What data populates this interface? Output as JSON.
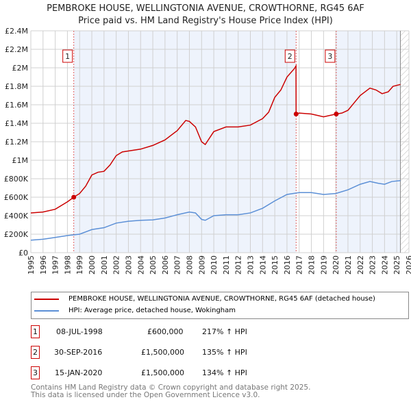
{
  "chart_data": {
    "type": "line",
    "title": "PEMBROKE HOUSE, WELLINGTONIA AVENUE, CROWTHORNE, RG45 6AF",
    "subtitle": "Price paid vs. HM Land Registry's House Price Index (HPI)",
    "xlim": [
      1995,
      2026
    ],
    "ylim": [
      0,
      2400000
    ],
    "yticks": [
      {
        "v": 0,
        "l": "£0"
      },
      {
        "v": 200000,
        "l": "£200K"
      },
      {
        "v": 400000,
        "l": "£400K"
      },
      {
        "v": 600000,
        "l": "£600K"
      },
      {
        "v": 800000,
        "l": "£800K"
      },
      {
        "v": 1000000,
        "l": "£1M"
      },
      {
        "v": 1200000,
        "l": "£1.2M"
      },
      {
        "v": 1400000,
        "l": "£1.4M"
      },
      {
        "v": 1600000,
        "l": "£1.6M"
      },
      {
        "v": 1800000,
        "l": "£1.8M"
      },
      {
        "v": 2000000,
        "l": "£2M"
      },
      {
        "v": 2200000,
        "l": "£2.2M"
      },
      {
        "v": 2400000,
        "l": "£2.4M"
      }
    ],
    "xticks": [
      "1995",
      "1996",
      "1997",
      "1998",
      "1999",
      "2000",
      "2001",
      "2002",
      "2003",
      "2004",
      "2005",
      "2006",
      "2007",
      "2008",
      "2009",
      "2010",
      "2011",
      "2012",
      "2013",
      "2014",
      "2015",
      "2016",
      "2017",
      "2018",
      "2019",
      "2020",
      "2021",
      "2022",
      "2023",
      "2024",
      "2025",
      "2026"
    ],
    "series": [
      {
        "name": "PEMBROKE HOUSE, WELLINGTONIA AVENUE, CROWTHORNE, RG45 6AF (detached house)",
        "color": "#cc0000",
        "x": [
          1995,
          1996,
          1997,
          1998,
          1998.52,
          1999,
          1999.5,
          2000,
          2000.5,
          2001,
          2001.5,
          2002,
          2002.5,
          2003,
          2004,
          2005,
          2006,
          2007,
          2007.7,
          2008,
          2008.5,
          2009,
          2009.3,
          2010,
          2011,
          2012,
          2013,
          2014,
          2014.5,
          2015,
          2015.5,
          2016,
          2016.6,
          2016.74,
          2016.75,
          2017,
          2018,
          2019,
          2020.04,
          2020.5,
          2021,
          2021.5,
          2022,
          2022.8,
          2023.3,
          2023.8,
          2024.3,
          2024.7,
          2025.3
        ],
        "y": [
          430000,
          440000,
          470000,
          550000,
          600000,
          640000,
          720000,
          840000,
          870000,
          880000,
          950000,
          1050000,
          1090000,
          1100000,
          1120000,
          1160000,
          1220000,
          1320000,
          1430000,
          1420000,
          1360000,
          1200000,
          1170000,
          1310000,
          1360000,
          1360000,
          1380000,
          1450000,
          1520000,
          1680000,
          1760000,
          1900000,
          1990000,
          2020000,
          1500000,
          1510000,
          1500000,
          1470000,
          1500000,
          1510000,
          1540000,
          1620000,
          1700000,
          1780000,
          1760000,
          1720000,
          1740000,
          1800000,
          1820000
        ]
      },
      {
        "name": "HPI: Average price, detached house, Wokingham",
        "color": "#5b8fd6",
        "x": [
          1995,
          1996,
          1997,
          1998,
          1999,
          2000,
          2001,
          2002,
          2003,
          2004,
          2005,
          2006,
          2007,
          2008,
          2008.5,
          2009,
          2009.3,
          2010,
          2011,
          2012,
          2013,
          2014,
          2015,
          2016,
          2017,
          2018,
          2019,
          2020,
          2021,
          2022,
          2022.8,
          2023.5,
          2024,
          2024.6,
          2025.3
        ],
        "y": [
          135000,
          145000,
          165000,
          185000,
          200000,
          250000,
          270000,
          320000,
          340000,
          350000,
          355000,
          375000,
          410000,
          440000,
          430000,
          360000,
          350000,
          400000,
          410000,
          410000,
          430000,
          480000,
          560000,
          630000,
          650000,
          650000,
          630000,
          640000,
          680000,
          740000,
          770000,
          750000,
          740000,
          770000,
          780000
        ]
      }
    ],
    "sales": [
      {
        "n": "1",
        "x": 1998.52,
        "y": 600000
      },
      {
        "n": "2",
        "x": 2016.75,
        "y": 1500000
      },
      {
        "n": "3",
        "x": 2020.04,
        "y": 1500000
      }
    ],
    "shaded": [
      [
        1998.52,
        2016.75
      ],
      [
        2020.04,
        2025.3
      ]
    ],
    "hatch_from": 2025.3
  },
  "legend": {
    "red": "PEMBROKE HOUSE, WELLINGTONIA AVENUE, CROWTHORNE, RG45 6AF (detached house)",
    "blue": "HPI: Average price, detached house, Wokingham"
  },
  "transactions": [
    {
      "n": "1",
      "date": "08-JUL-1998",
      "price": "£600,000",
      "hpi": "217% ↑ HPI"
    },
    {
      "n": "2",
      "date": "30-SEP-2016",
      "price": "£1,500,000",
      "hpi": "135% ↑ HPI"
    },
    {
      "n": "3",
      "date": "15-JAN-2020",
      "price": "£1,500,000",
      "hpi": "134% ↑ HPI"
    }
  ],
  "footer": {
    "line1": "Contains HM Land Registry data © Crown copyright and database right 2025.",
    "line2": "This data is licensed under the Open Government Licence v3.0."
  }
}
